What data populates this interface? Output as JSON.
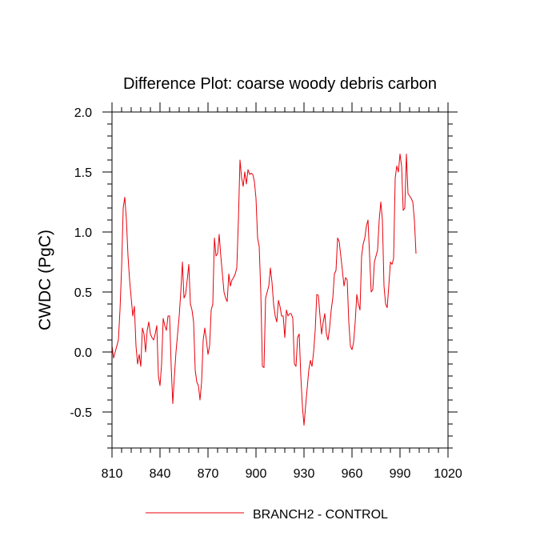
{
  "chart_data": {
    "type": "line",
    "title": "Difference Plot: coarse woody debris carbon",
    "xlabel": "",
    "ylabel": "CWDC  (PgC)",
    "xlim": [
      810,
      1020
    ],
    "ylim": [
      -0.8,
      2.0
    ],
    "x_ticks": [
      810,
      840,
      870,
      900,
      930,
      960,
      990,
      1020
    ],
    "y_ticks": [
      -0.5,
      0.0,
      0.5,
      1.0,
      1.5,
      2.0
    ],
    "y_tick_labels": [
      "-0.5",
      "0.0",
      "0.5",
      "1.0",
      "1.5",
      "2.0"
    ],
    "grid": false,
    "legend_position": "bottom",
    "series": [
      {
        "name": "BRANCH2 - CONTROL",
        "color": "#e8000b",
        "points": [
          [
            810,
            0.05
          ],
          [
            811,
            -0.05
          ],
          [
            812,
            0.0
          ],
          [
            813,
            0.05
          ],
          [
            814,
            0.1
          ],
          [
            815,
            0.35
          ],
          [
            816,
            0.7
          ],
          [
            817,
            1.2
          ],
          [
            818,
            1.29
          ],
          [
            819,
            1.1
          ],
          [
            820,
            0.8
          ],
          [
            821,
            0.6
          ],
          [
            822,
            0.45
          ],
          [
            823,
            0.3
          ],
          [
            824,
            0.38
          ],
          [
            825,
            0.05
          ],
          [
            826,
            -0.1
          ],
          [
            827,
            -0.02
          ],
          [
            828,
            -0.12
          ],
          [
            829,
            0.2
          ],
          [
            830,
            0.15
          ],
          [
            831,
            0.0
          ],
          [
            832,
            0.18
          ],
          [
            833,
            0.25
          ],
          [
            834,
            0.15
          ],
          [
            835,
            0.12
          ],
          [
            836,
            0.1
          ],
          [
            837,
            0.15
          ],
          [
            838,
            0.22
          ],
          [
            839,
            -0.2
          ],
          [
            840,
            -0.28
          ],
          [
            841,
            -0.1
          ],
          [
            842,
            0.28
          ],
          [
            843,
            0.22
          ],
          [
            844,
            0.18
          ],
          [
            845,
            0.3
          ],
          [
            846,
            0.3
          ],
          [
            847,
            -0.12
          ],
          [
            848,
            -0.43
          ],
          [
            849,
            -0.2
          ],
          [
            850,
            0.0
          ],
          [
            851,
            0.15
          ],
          [
            852,
            0.3
          ],
          [
            853,
            0.5
          ],
          [
            854,
            0.75
          ],
          [
            855,
            0.45
          ],
          [
            856,
            0.48
          ],
          [
            857,
            0.6
          ],
          [
            858,
            0.73
          ],
          [
            859,
            0.4
          ],
          [
            860,
            0.35
          ],
          [
            861,
            0.25
          ],
          [
            862,
            -0.15
          ],
          [
            863,
            -0.25
          ],
          [
            864,
            -0.28
          ],
          [
            865,
            -0.4
          ],
          [
            866,
            -0.25
          ],
          [
            867,
            0.1
          ],
          [
            868,
            0.2
          ],
          [
            869,
            0.1
          ],
          [
            870,
            -0.02
          ],
          [
            871,
            0.05
          ],
          [
            872,
            0.35
          ],
          [
            873,
            0.4
          ],
          [
            874,
            0.95
          ],
          [
            875,
            0.8
          ],
          [
            876,
            0.82
          ],
          [
            877,
            0.98
          ],
          [
            878,
            0.8
          ],
          [
            879,
            0.65
          ],
          [
            880,
            0.5
          ],
          [
            881,
            0.45
          ],
          [
            882,
            0.42
          ],
          [
            883,
            0.65
          ],
          [
            884,
            0.55
          ],
          [
            885,
            0.6
          ],
          [
            886,
            0.62
          ],
          [
            887,
            0.65
          ],
          [
            888,
            0.7
          ],
          [
            889,
            1.1
          ],
          [
            890,
            1.6
          ],
          [
            891,
            1.45
          ],
          [
            892,
            1.38
          ],
          [
            893,
            1.5
          ],
          [
            894,
            1.4
          ],
          [
            895,
            1.52
          ],
          [
            896,
            1.48
          ],
          [
            897,
            1.49
          ],
          [
            898,
            1.48
          ],
          [
            899,
            1.42
          ],
          [
            900,
            1.28
          ],
          [
            901,
            0.95
          ],
          [
            902,
            0.88
          ],
          [
            903,
            0.5
          ],
          [
            904,
            -0.12
          ],
          [
            905,
            -0.13
          ],
          [
            906,
            0.45
          ],
          [
            907,
            0.5
          ],
          [
            908,
            0.55
          ],
          [
            909,
            0.7
          ],
          [
            910,
            0.58
          ],
          [
            911,
            0.4
          ],
          [
            912,
            0.3
          ],
          [
            913,
            0.25
          ],
          [
            914,
            0.43
          ],
          [
            915,
            0.38
          ],
          [
            916,
            0.3
          ],
          [
            917,
            0.3
          ],
          [
            918,
            0.12
          ],
          [
            919,
            0.35
          ],
          [
            920,
            0.3
          ],
          [
            921,
            0.32
          ],
          [
            922,
            0.32
          ],
          [
            923,
            0.28
          ],
          [
            924,
            -0.1
          ],
          [
            925,
            -0.12
          ],
          [
            926,
            0.12
          ],
          [
            927,
            0.15
          ],
          [
            928,
            -0.2
          ],
          [
            929,
            -0.45
          ],
          [
            930,
            -0.61
          ],
          [
            931,
            -0.45
          ],
          [
            932,
            -0.3
          ],
          [
            933,
            -0.15
          ],
          [
            934,
            -0.07
          ],
          [
            935,
            -0.12
          ],
          [
            936,
            0.0
          ],
          [
            937,
            0.18
          ],
          [
            938,
            0.48
          ],
          [
            939,
            0.47
          ],
          [
            940,
            0.3
          ],
          [
            941,
            0.15
          ],
          [
            942,
            0.25
          ],
          [
            943,
            0.32
          ],
          [
            944,
            0.15
          ],
          [
            945,
            0.1
          ],
          [
            946,
            0.2
          ],
          [
            947,
            0.35
          ],
          [
            948,
            0.45
          ],
          [
            949,
            0.65
          ],
          [
            950,
            0.68
          ],
          [
            951,
            0.95
          ],
          [
            952,
            0.92
          ],
          [
            953,
            0.8
          ],
          [
            954,
            0.68
          ],
          [
            955,
            0.55
          ],
          [
            956,
            0.62
          ],
          [
            957,
            0.6
          ],
          [
            958,
            0.25
          ],
          [
            959,
            0.05
          ],
          [
            960,
            0.02
          ],
          [
            961,
            0.08
          ],
          [
            962,
            0.25
          ],
          [
            963,
            0.48
          ],
          [
            964,
            0.4
          ],
          [
            965,
            0.35
          ],
          [
            966,
            0.8
          ],
          [
            967,
            0.9
          ],
          [
            968,
            0.95
          ],
          [
            969,
            1.05
          ],
          [
            970,
            1.1
          ],
          [
            971,
            0.8
          ],
          [
            972,
            0.5
          ],
          [
            973,
            0.52
          ],
          [
            974,
            0.75
          ],
          [
            975,
            0.8
          ],
          [
            976,
            0.85
          ],
          [
            977,
            1.1
          ],
          [
            978,
            1.25
          ],
          [
            979,
            1.1
          ],
          [
            980,
            0.55
          ],
          [
            981,
            0.4
          ],
          [
            982,
            0.37
          ],
          [
            983,
            0.55
          ],
          [
            984,
            0.75
          ],
          [
            985,
            0.73
          ],
          [
            986,
            0.78
          ],
          [
            987,
            1.45
          ],
          [
            988,
            1.55
          ],
          [
            989,
            1.5
          ],
          [
            990,
            1.65
          ],
          [
            991,
            1.55
          ],
          [
            992,
            1.18
          ],
          [
            993,
            1.2
          ],
          [
            994,
            1.65
          ],
          [
            995,
            1.32
          ],
          [
            996,
            1.3
          ],
          [
            997,
            1.28
          ],
          [
            998,
            1.25
          ],
          [
            999,
            1.1
          ],
          [
            1000,
            0.82
          ]
        ]
      }
    ]
  }
}
